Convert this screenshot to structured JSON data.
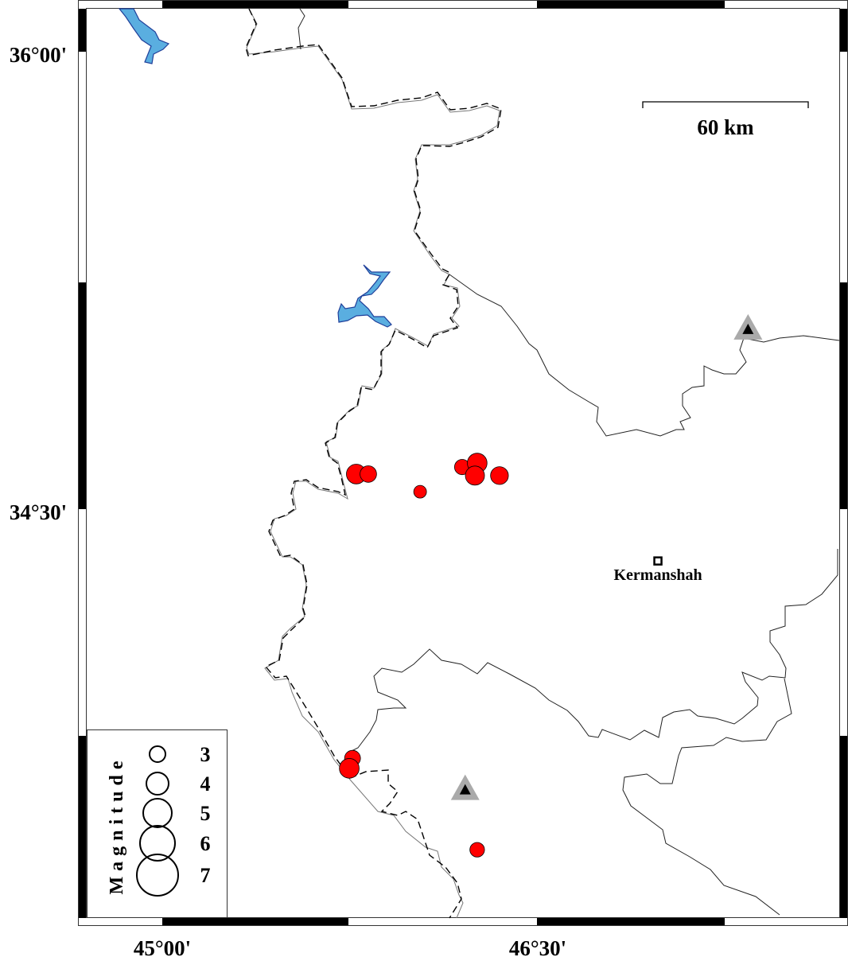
{
  "map": {
    "colors": {
      "event": "#ff0000",
      "lake": "#5aaee0",
      "lake_outline": "#1f3f9a",
      "volcano_outer": "#aaaaaa",
      "volcano_inner": "#000000"
    },
    "lon_labels": [
      "45°00'",
      "46°30'"
    ],
    "lat_labels": [
      "36°00'",
      "34°30'"
    ],
    "scale_bar": {
      "label": "60 km"
    },
    "city": {
      "name": "Kermanshah",
      "lon": 46.98,
      "lat": 34.33
    },
    "volcanoes": [
      {
        "lon": 47.34,
        "lat": 35.09
      },
      {
        "lon": 46.21,
        "lat": 33.58
      }
    ],
    "events": [
      {
        "lon": 45.775,
        "lat": 34.615,
        "mag": 3.6
      },
      {
        "lon": 45.823,
        "lat": 34.615,
        "mag": 3.1
      },
      {
        "lon": 46.03,
        "lat": 34.557,
        "mag": 2.5
      },
      {
        "lon": 46.198,
        "lat": 34.638,
        "mag": 2.9
      },
      {
        "lon": 46.258,
        "lat": 34.651,
        "mag": 3.6
      },
      {
        "lon": 46.249,
        "lat": 34.61,
        "mag": 3.5
      },
      {
        "lon": 46.347,
        "lat": 34.61,
        "mag": 3.3
      },
      {
        "lon": 45.76,
        "lat": 33.683,
        "mag": 3.0
      },
      {
        "lon": 45.747,
        "lat": 33.65,
        "mag": 3.6
      },
      {
        "lon": 46.258,
        "lat": 33.383,
        "mag": 2.8
      }
    ]
  },
  "legend": {
    "title": "Magnitude",
    "entries": [
      "3",
      "4",
      "5",
      "6",
      "7"
    ]
  }
}
